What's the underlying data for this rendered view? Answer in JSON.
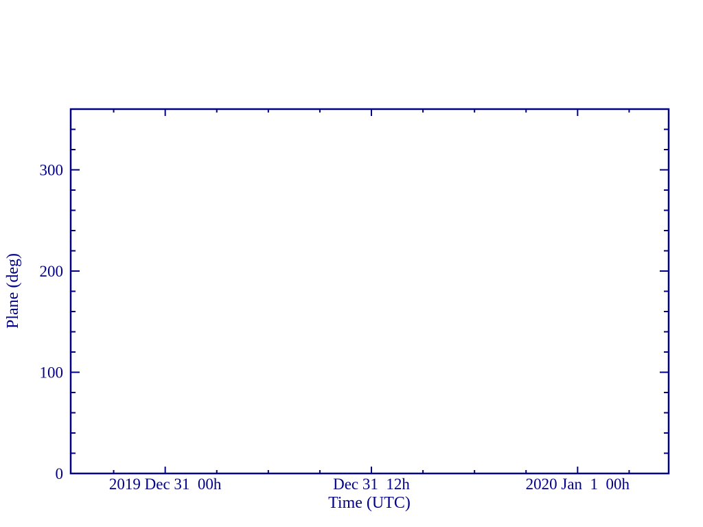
{
  "colors": {
    "axis": "#000080",
    "text": "#00008B",
    "background": "#FFFFFF"
  },
  "chart_data": {
    "type": "line",
    "title": "",
    "xlabel": "Time (UTC)",
    "ylabel": "Plane (deg)",
    "series": [],
    "grid": false,
    "frame": true,
    "x_axis": {
      "unit": "hours relative to first labeled tick",
      "min": -5.5,
      "max": 29.3,
      "major_ticks": [
        {
          "value": 0,
          "label": "2019 Dec 31  00h"
        },
        {
          "value": 12,
          "label": "Dec 31  12h"
        },
        {
          "value": 24,
          "label": "2020 Jan  1  00h"
        }
      ],
      "minor_tick_values": [
        -3,
        3,
        6,
        9,
        15,
        18,
        21,
        27
      ]
    },
    "y_axis": {
      "min": 0,
      "max": 360,
      "major_ticks": [
        {
          "value": 0,
          "label": "0"
        },
        {
          "value": 100,
          "label": "100"
        },
        {
          "value": 200,
          "label": "200"
        },
        {
          "value": 300,
          "label": "300"
        }
      ],
      "minor_tick_values": [
        20,
        40,
        60,
        80,
        120,
        140,
        160,
        180,
        220,
        240,
        260,
        280,
        320,
        340
      ]
    }
  }
}
